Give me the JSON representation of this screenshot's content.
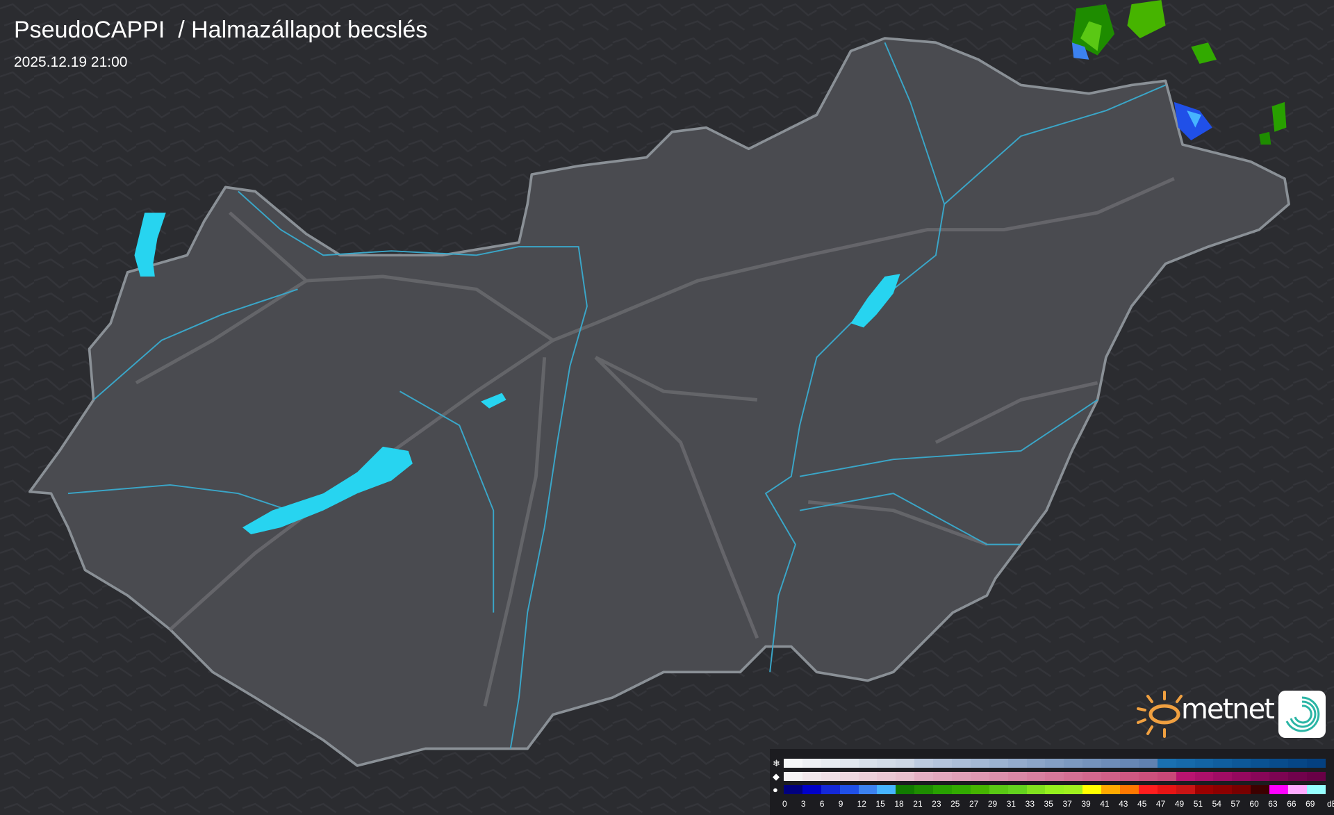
{
  "header": {
    "title": "PseudoCAPPI  / Halmazállapot becslés",
    "datetime": "2025.12.19 21:00"
  },
  "logo": {
    "text": "metnet",
    "sun_color": "#f0a040",
    "badge_color": "#2bb5a5"
  },
  "colors": {
    "background": "#2b2c30",
    "country_fill": "#4a4b50",
    "border": "#8a9096",
    "river": "#3aa6c8",
    "lake": "#27d4f0",
    "road": "#6b6c70"
  },
  "legend": {
    "icons": [
      "snow-icon",
      "sleet-icon",
      "rain-drop-icon"
    ],
    "unit": "dBZ",
    "labels": [
      "0",
      "3",
      "6",
      "9",
      "12",
      "15",
      "18",
      "21",
      "23",
      "25",
      "27",
      "29",
      "31",
      "33",
      "35",
      "37",
      "39",
      "41",
      "43",
      "45",
      "47",
      "49",
      "51",
      "54",
      "57",
      "60",
      "63",
      "66",
      "69"
    ],
    "snow_colors": [
      "#f6f7f9",
      "#eef0f4",
      "#e8ecf1",
      "#e0e6ee",
      "#d8e0ea",
      "#d2dbe7",
      "#ccd6e4",
      "#bccadf",
      "#b4c4dc",
      "#acbed8",
      "#a4b8d4",
      "#9cb2d0",
      "#94abcc",
      "#8ca5c8",
      "#849fc4",
      "#7c99c0",
      "#7593bc",
      "#6e8db8",
      "#6787b4",
      "#6081b0",
      "#1a70b0",
      "#166aaa",
      "#1364a4",
      "#105e9e",
      "#0d5898",
      "#0a5292",
      "#084c8c",
      "#064686",
      "#044080"
    ],
    "sleet_colors": [
      "#f6f4f5",
      "#f2e8ec",
      "#f0e0e6",
      "#eed8e0",
      "#ecd0da",
      "#eac8d4",
      "#e8c0ce",
      "#e4b0c4",
      "#e2a8be",
      "#e0a0b8",
      "#de98b2",
      "#dc90ac",
      "#da88a6",
      "#d880a0",
      "#d6789a",
      "#d47094",
      "#d2688e",
      "#d06088",
      "#ce5882",
      "#cc507c",
      "#c84878",
      "#b81470",
      "#ac106a",
      "#a00c64",
      "#94085e",
      "#880658",
      "#7c0452",
      "#70024c",
      "#680046"
    ],
    "rain_colors": [
      "#00007e",
      "#0000c8",
      "#1428d8",
      "#2050e8",
      "#3c82f0",
      "#46b4ff",
      "#117a00",
      "#1e8c00",
      "#28a000",
      "#32aa00",
      "#46b400",
      "#5ac814",
      "#64d21e",
      "#82e11e",
      "#96f01e",
      "#a0f01e",
      "#ffff00",
      "#ffaa00",
      "#ff7800",
      "#ff1e1e",
      "#e61414",
      "#c81414",
      "#9b0000",
      "#8c0000",
      "#780000",
      "#3c0000",
      "#ff00ff",
      "#ffaaff",
      "#96ffff"
    ]
  }
}
